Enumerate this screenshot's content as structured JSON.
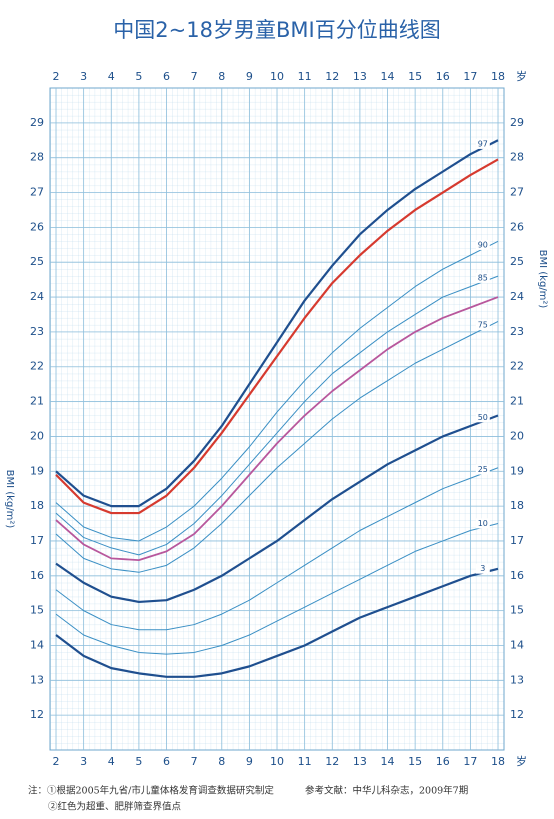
{
  "chart_data": {
    "type": "line",
    "title": "中国2~18岁男童BMI百分位曲线图",
    "xlabel": "岁",
    "ylabel": "BMI (kg/m²)",
    "x": [
      2,
      3,
      4,
      5,
      6,
      7,
      8,
      9,
      10,
      11,
      12,
      13,
      14,
      15,
      16,
      17,
      18
    ],
    "xlim": [
      2,
      18
    ],
    "xticks": [
      2,
      3,
      4,
      5,
      6,
      7,
      8,
      9,
      10,
      11,
      12,
      13,
      14,
      15,
      16,
      17,
      18
    ],
    "ylim": [
      11,
      30
    ],
    "yticks": [
      12,
      13,
      14,
      15,
      16,
      17,
      18,
      19,
      20,
      21,
      22,
      23,
      24,
      25,
      26,
      27,
      28,
      29
    ],
    "grid": true,
    "series": [
      {
        "name": "97",
        "color": "#1f4f8f",
        "values": [
          19.0,
          18.3,
          18.0,
          18.0,
          18.5,
          19.3,
          20.3,
          21.5,
          22.7,
          23.9,
          24.9,
          25.8,
          26.5,
          27.1,
          27.6,
          28.1,
          28.5
        ]
      },
      {
        "color": "#d63a2f",
        "values": [
          18.9,
          18.1,
          17.8,
          17.8,
          18.3,
          19.1,
          20.1,
          21.2,
          22.3,
          23.4,
          24.4,
          25.2,
          25.9,
          26.5,
          27.0,
          27.5,
          27.95
        ]
      },
      {
        "name": "90",
        "color": "#3a8fc4",
        "values": [
          18.1,
          17.4,
          17.1,
          17.0,
          17.4,
          18.0,
          18.8,
          19.7,
          20.7,
          21.6,
          22.4,
          23.1,
          23.7,
          24.3,
          24.8,
          25.2,
          25.6
        ]
      },
      {
        "name": "85",
        "color": "#3a8fc4",
        "values": [
          17.8,
          17.1,
          16.8,
          16.6,
          16.9,
          17.5,
          18.3,
          19.2,
          20.1,
          21.0,
          21.8,
          22.4,
          23.0,
          23.5,
          24.0,
          24.3,
          24.6
        ]
      },
      {
        "color": "#b8579c",
        "values": [
          17.6,
          16.9,
          16.5,
          16.45,
          16.7,
          17.2,
          18.0,
          18.9,
          19.8,
          20.6,
          21.3,
          21.9,
          22.5,
          23.0,
          23.4,
          23.7,
          24.0
        ]
      },
      {
        "name": "75",
        "color": "#3a8fc4",
        "values": [
          17.2,
          16.5,
          16.2,
          16.1,
          16.3,
          16.8,
          17.5,
          18.3,
          19.1,
          19.8,
          20.5,
          21.1,
          21.6,
          22.1,
          22.5,
          22.9,
          23.3
        ]
      },
      {
        "name": "50",
        "color": "#1f4f8f",
        "values": [
          16.35,
          15.8,
          15.4,
          15.25,
          15.3,
          15.6,
          16.0,
          16.5,
          17.0,
          17.6,
          18.2,
          18.7,
          19.2,
          19.6,
          20.0,
          20.3,
          20.6
        ]
      },
      {
        "name": "25",
        "color": "#3a8fc4",
        "values": [
          15.6,
          15.0,
          14.6,
          14.45,
          14.45,
          14.6,
          14.9,
          15.3,
          15.8,
          16.3,
          16.8,
          17.3,
          17.7,
          18.1,
          18.5,
          18.8,
          19.1
        ]
      },
      {
        "name": "10",
        "color": "#3a8fc4",
        "values": [
          14.9,
          14.3,
          14.0,
          13.8,
          13.75,
          13.8,
          14.0,
          14.3,
          14.7,
          15.1,
          15.5,
          15.9,
          16.3,
          16.7,
          17.0,
          17.3,
          17.5
        ]
      },
      {
        "name": "3",
        "color": "#1f4f8f",
        "values": [
          14.3,
          13.7,
          13.35,
          13.2,
          13.1,
          13.1,
          13.2,
          13.4,
          13.7,
          14.0,
          14.4,
          14.8,
          15.1,
          15.4,
          15.7,
          16.0,
          16.2
        ]
      }
    ]
  },
  "notes": {
    "note1": "注：①根据2005年九省/市儿童体格发育调查数据研究制定",
    "reference": "参考文献：中华儿科杂志，2009年7期",
    "note2": "②红色为超重、肥胖筛查界值点"
  }
}
